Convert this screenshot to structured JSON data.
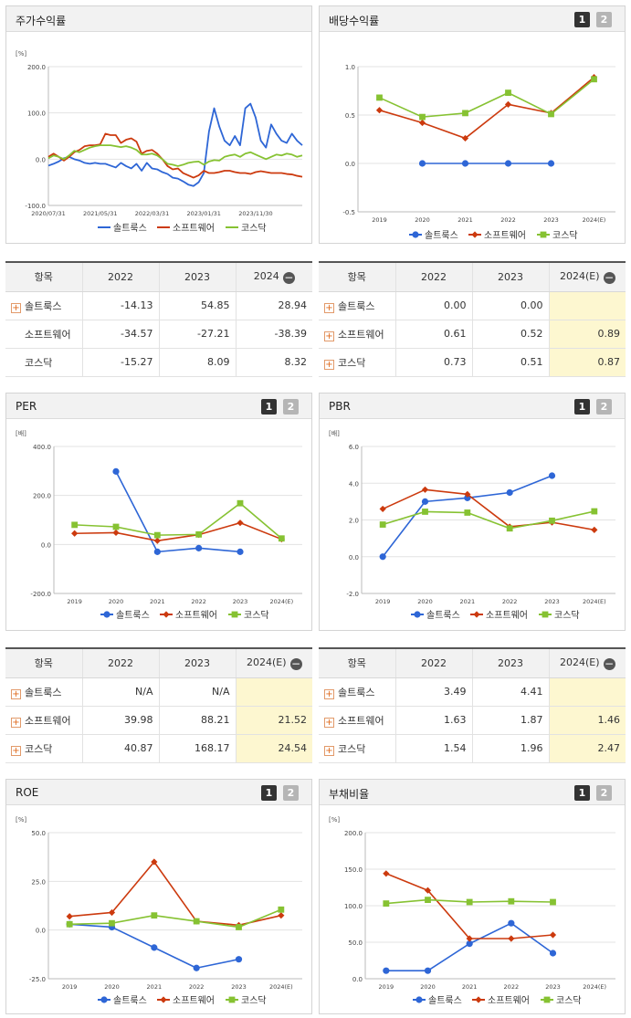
{
  "labels": {
    "item_header": "항목",
    "plus": "+",
    "minus": "−",
    "page1": "1",
    "page2": "2"
  },
  "colors": {
    "solteu": "#2e66d6",
    "software": "#cc3a0e",
    "kosdaq": "#86c232"
  },
  "panels": {
    "stock": {
      "title": "주가수익률"
    },
    "dividend": {
      "title": "배당수익률"
    },
    "per": {
      "title": "PER"
    },
    "pbr": {
      "title": "PBR"
    },
    "roe": {
      "title": "ROE"
    },
    "debt": {
      "title": "부채비율"
    }
  },
  "tables": {
    "stock": {
      "columns": [
        "2022",
        "2023",
        "2024"
      ],
      "rows": [
        {
          "name": "솔트룩스",
          "plus": true,
          "values": [
            "-14.13",
            "54.85",
            "28.94"
          ]
        },
        {
          "name": "소프트웨어",
          "plus": false,
          "values": [
            "-34.57",
            "-27.21",
            "-38.39"
          ]
        },
        {
          "name": "코스닥",
          "plus": false,
          "values": [
            "-15.27",
            "8.09",
            "8.32"
          ]
        }
      ]
    },
    "dividend": {
      "columns": [
        "2022",
        "2023",
        "2024(E)"
      ],
      "rows": [
        {
          "name": "솔트룩스",
          "plus": true,
          "values": [
            "0.00",
            "0.00",
            ""
          ]
        },
        {
          "name": "소프트웨어",
          "plus": true,
          "values": [
            "0.61",
            "0.52",
            "0.89"
          ]
        },
        {
          "name": "코스닥",
          "plus": true,
          "values": [
            "0.73",
            "0.51",
            "0.87"
          ]
        }
      ]
    },
    "per": {
      "columns": [
        "2022",
        "2023",
        "2024(E)"
      ],
      "rows": [
        {
          "name": "솔트룩스",
          "plus": true,
          "values": [
            "N/A",
            "N/A",
            ""
          ]
        },
        {
          "name": "소프트웨어",
          "plus": true,
          "values": [
            "39.98",
            "88.21",
            "21.52"
          ]
        },
        {
          "name": "코스닥",
          "plus": true,
          "values": [
            "40.87",
            "168.17",
            "24.54"
          ]
        }
      ]
    },
    "pbr": {
      "columns": [
        "2022",
        "2023",
        "2024(E)"
      ],
      "rows": [
        {
          "name": "솔트룩스",
          "plus": true,
          "values": [
            "3.49",
            "4.41",
            ""
          ]
        },
        {
          "name": "소프트웨어",
          "plus": true,
          "values": [
            "1.63",
            "1.87",
            "1.46"
          ]
        },
        {
          "name": "코스닥",
          "plus": true,
          "values": [
            "1.54",
            "1.96",
            "2.47"
          ]
        }
      ]
    }
  },
  "chart_data": [
    {
      "id": "stock",
      "type": "line",
      "title": "주가수익률",
      "ylabel": "[%]",
      "ylim": [
        -100,
        200
      ],
      "yticks": [
        "200.0",
        "100.0",
        "0.0",
        "-100.0"
      ],
      "yticks_values": [
        200,
        100,
        0,
        -100
      ],
      "xticks": [
        "2020/07/31",
        "2021/05/31",
        "2022/03/31",
        "2023/01/31",
        "2023/11/30"
      ],
      "series": [
        {
          "name": "솔트룩스",
          "values": [
            -14,
            -10,
            -5,
            2,
            5,
            0,
            -3,
            -8,
            -10,
            -8,
            -10,
            -10,
            -14,
            -18,
            -8,
            -15,
            -20,
            -10,
            -25,
            -8,
            -20,
            -22,
            -28,
            -32,
            -40,
            -42,
            -48,
            -55,
            -58,
            -50,
            -30,
            60,
            110,
            70,
            40,
            30,
            50,
            30,
            110,
            120,
            90,
            40,
            25,
            75,
            55,
            40,
            35,
            55,
            40,
            30
          ]
        },
        {
          "name": "소프트웨어",
          "values": [
            5,
            12,
            5,
            -3,
            5,
            15,
            20,
            28,
            30,
            30,
            32,
            55,
            52,
            52,
            35,
            42,
            45,
            38,
            12,
            18,
            20,
            12,
            0,
            -15,
            -22,
            -20,
            -30,
            -35,
            -40,
            -35,
            -25,
            -30,
            -30,
            -28,
            -25,
            -25,
            -28,
            -30,
            -30,
            -32,
            -28,
            -26,
            -28,
            -30,
            -30,
            -30,
            -32,
            -33,
            -36,
            -38
          ]
        },
        {
          "name": "코스닥",
          "values": [
            2,
            8,
            5,
            0,
            8,
            18,
            15,
            20,
            25,
            28,
            30,
            30,
            30,
            28,
            26,
            28,
            25,
            20,
            10,
            10,
            12,
            8,
            0,
            -10,
            -12,
            -15,
            -12,
            -8,
            -6,
            -5,
            -12,
            -5,
            -2,
            -3,
            5,
            8,
            10,
            5,
            12,
            15,
            10,
            5,
            0,
            5,
            10,
            8,
            12,
            10,
            5,
            8
          ]
        }
      ]
    },
    {
      "id": "dividend",
      "type": "line",
      "title": "배당수익률",
      "ylim": [
        -0.5,
        1.0
      ],
      "yticks": [
        "1.0",
        "0.5",
        "0.0",
        "-0.5"
      ],
      "yticks_values": [
        1.0,
        0.5,
        0.0,
        -0.5
      ],
      "categories": [
        "2019",
        "2020",
        "2021",
        "2022",
        "2023",
        "2024(E)"
      ],
      "series": [
        {
          "name": "솔트룩스",
          "values": [
            null,
            0.0,
            0.0,
            0.0,
            0.0,
            null
          ]
        },
        {
          "name": "소프트웨어",
          "values": [
            0.55,
            0.42,
            0.26,
            0.61,
            0.52,
            0.89
          ]
        },
        {
          "name": "코스닥",
          "values": [
            0.68,
            0.48,
            0.52,
            0.73,
            0.51,
            0.87
          ]
        }
      ]
    },
    {
      "id": "per",
      "type": "line",
      "title": "PER",
      "ylabel": "[배]",
      "ylim": [
        -200,
        400
      ],
      "yticks": [
        "400.0",
        "200.0",
        "0.0",
        "-200.0"
      ],
      "yticks_values": [
        400,
        200,
        0,
        -200
      ],
      "categories": [
        "2019",
        "2020",
        "2021",
        "2022",
        "2023",
        "2024(E)"
      ],
      "series": [
        {
          "name": "솔트룩스",
          "values": [
            null,
            298,
            -30,
            -15,
            -30,
            null
          ]
        },
        {
          "name": "소프트웨어",
          "values": [
            45,
            48,
            15,
            40,
            88.21,
            21.52
          ]
        },
        {
          "name": "코스닥",
          "values": [
            80,
            72,
            38,
            40.87,
            168.17,
            24.54
          ]
        }
      ]
    },
    {
      "id": "pbr",
      "type": "line",
      "title": "PBR",
      "ylabel": "[배]",
      "ylim": [
        -2.0,
        6.0
      ],
      "yticks": [
        "6.0",
        "4.0",
        "2.0",
        "0.0",
        "-2.0"
      ],
      "yticks_values": [
        6,
        4,
        2,
        0,
        -2
      ],
      "categories": [
        "2019",
        "2020",
        "2021",
        "2022",
        "2023",
        "2024(E)"
      ],
      "series": [
        {
          "name": "솔트룩스",
          "values": [
            0.0,
            3.0,
            3.2,
            3.49,
            4.41,
            null
          ]
        },
        {
          "name": "소프트웨어",
          "values": [
            2.6,
            3.65,
            3.4,
            1.63,
            1.87,
            1.46
          ]
        },
        {
          "name": "코스닥",
          "values": [
            1.75,
            2.45,
            2.4,
            1.54,
            1.96,
            2.47
          ]
        }
      ]
    },
    {
      "id": "roe",
      "type": "line",
      "title": "ROE",
      "ylabel": "[%]",
      "ylim": [
        -25,
        50
      ],
      "yticks": [
        "50.0",
        "25.0",
        "0.0",
        "-25.0"
      ],
      "yticks_values": [
        50,
        25,
        0,
        -25
      ],
      "categories": [
        "2019",
        "2020",
        "2021",
        "2022",
        "2023",
        "2024(E)"
      ],
      "series": [
        {
          "name": "솔트룩스",
          "values": [
            3,
            1.5,
            -9,
            -19.5,
            -15,
            null
          ]
        },
        {
          "name": "소프트웨어",
          "values": [
            7,
            9,
            35,
            4.5,
            2.5,
            7.5
          ]
        },
        {
          "name": "코스닥",
          "values": [
            3,
            3.5,
            7.5,
            4.5,
            1.5,
            10.5
          ]
        }
      ]
    },
    {
      "id": "debt",
      "type": "line",
      "title": "부채비율",
      "ylabel": "[%]",
      "ylim": [
        0,
        200
      ],
      "yticks": [
        "200.0",
        "150.0",
        "100.0",
        "50.0",
        "0.0"
      ],
      "yticks_values": [
        200,
        150,
        100,
        50,
        0
      ],
      "categories": [
        "2019",
        "2020",
        "2021",
        "2022",
        "2023",
        "2024(E)"
      ],
      "series": [
        {
          "name": "솔트룩스",
          "values": [
            11,
            11,
            48,
            76,
            35,
            null
          ]
        },
        {
          "name": "소프트웨어",
          "values": [
            144,
            121,
            55,
            55,
            60,
            null
          ]
        },
        {
          "name": "코스닥",
          "values": [
            103,
            108,
            105,
            106,
            105,
            null
          ]
        }
      ]
    }
  ]
}
